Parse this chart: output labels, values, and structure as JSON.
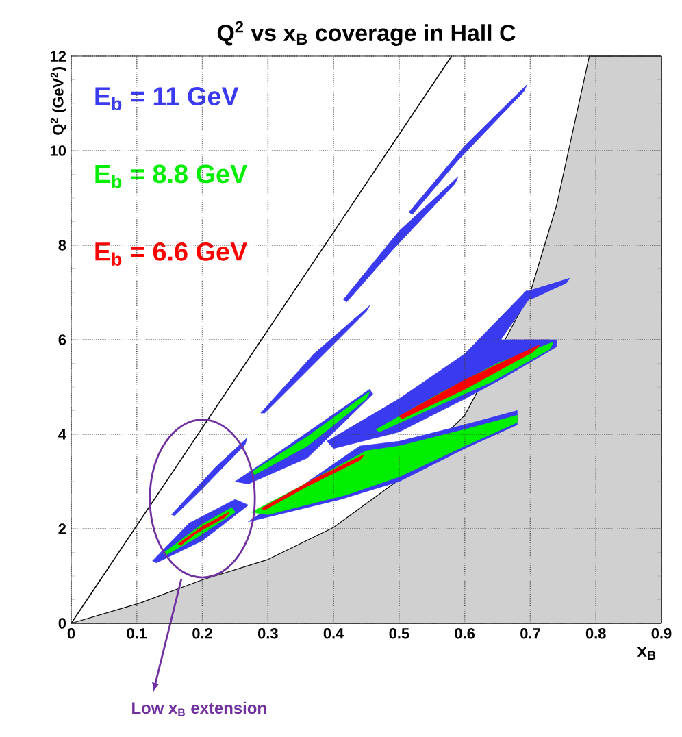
{
  "chart_data": {
    "type": "area",
    "title": "Q$^{2}$ vs x$_{B}$ coverage in Hall C",
    "xlabel": "x$_{B}$",
    "ylabel": "Q$^{2}$ (GeV$^{2}$)",
    "xlim": [
      0,
      0.9
    ],
    "ylim": [
      0,
      12
    ],
    "xticks": [
      0,
      0.1,
      0.2,
      0.3,
      0.4,
      0.5,
      0.6,
      0.7,
      0.8,
      0.9
    ],
    "yticks": [
      0,
      2,
      4,
      6,
      8,
      10,
      12
    ],
    "grid": true,
    "annotations": [
      "Low x$_{B}$ extension"
    ],
    "series": [
      {
        "name": "E$_{b}$ = 11 GeV",
        "color": "#3a3af0",
        "x": [
          0.124,
          0.18,
          0.25,
          0.27,
          0.2,
          0.13,
          null,
          0.153,
          0.22,
          0.268,
          0.265,
          0.2,
          0.158,
          null,
          0.27,
          0.33,
          0.44,
          0.5,
          0.6,
          0.68,
          0.68,
          0.6,
          0.5,
          0.41,
          0.3,
          null,
          0.25,
          0.33,
          0.455,
          0.46,
          0.36,
          0.27,
          null,
          0.39,
          0.5,
          0.6,
          0.695,
          0.7,
          0.655,
          0.74,
          0.74,
          0.66,
          0.6,
          0.5,
          0.4,
          null,
          0.69,
          0.76,
          0.755,
          0.7,
          null,
          0.289,
          0.37,
          0.455,
          0.45,
          0.36,
          0.295,
          null,
          0.415,
          0.5,
          0.59,
          0.585,
          0.49,
          0.42,
          null,
          0.515,
          0.6,
          0.695,
          0.69,
          0.59,
          0.52
        ],
        "values": [
          1.32,
          2.12,
          2.62,
          2.5,
          1.75,
          1.28,
          null,
          2.3,
          3.3,
          3.92,
          3.78,
          2.85,
          2.28,
          null,
          2.15,
          2.7,
          3.75,
          3.85,
          4.2,
          4.5,
          4.2,
          3.7,
          3.0,
          2.62,
          2.25,
          null,
          3.0,
          3.75,
          4.95,
          4.85,
          3.5,
          2.95,
          null,
          3.85,
          4.75,
          5.7,
          7.05,
          6.9,
          6.0,
          6.0,
          5.85,
          5.2,
          4.75,
          4.05,
          3.7,
          null,
          7.0,
          7.3,
          7.2,
          6.85,
          null,
          4.45,
          5.7,
          6.72,
          6.6,
          5.35,
          4.45,
          null,
          6.85,
          8.3,
          9.45,
          9.3,
          7.9,
          6.8,
          null,
          8.7,
          10.1,
          11.4,
          11.25,
          9.8,
          8.65
        ]
      },
      {
        "name": "E$_{b}$ = 8.8 GeV",
        "color": "#00ee00",
        "x": [
          0.14,
          0.2,
          0.245,
          0.25,
          0.19,
          0.145,
          null,
          0.275,
          0.35,
          0.45,
          0.5,
          0.6,
          0.68,
          0.68,
          0.6,
          0.5,
          0.42,
          0.3,
          null,
          0.275,
          0.36,
          0.455,
          0.45,
          0.36,
          0.28,
          null,
          0.465,
          0.56,
          0.65,
          0.735,
          0.73,
          0.64,
          0.55,
          0.47
        ],
        "values": [
          1.48,
          2.1,
          2.45,
          2.35,
          1.8,
          1.45,
          null,
          2.35,
          2.9,
          3.65,
          3.75,
          4.1,
          4.4,
          4.25,
          3.75,
          3.1,
          2.72,
          2.3,
          null,
          3.2,
          3.95,
          4.9,
          4.75,
          3.75,
          3.15,
          null,
          4.1,
          4.85,
          5.5,
          5.95,
          5.8,
          5.1,
          4.55,
          4.05
        ]
      },
      {
        "name": "E$_{b}$ = 6.6 GeV",
        "color": "#ff0000",
        "x": [
          0.163,
          0.2,
          0.242,
          0.235,
          0.19,
          0.167,
          null,
          0.29,
          0.37,
          0.447,
          0.44,
          0.36,
          0.295,
          null,
          0.5,
          0.6,
          0.715,
          0.705,
          0.6,
          0.505
        ],
        "values": [
          1.68,
          2.05,
          2.36,
          2.25,
          1.9,
          1.65,
          null,
          2.43,
          3.05,
          3.57,
          3.45,
          2.9,
          2.4,
          null,
          4.38,
          5.15,
          5.9,
          5.75,
          4.95,
          4.33
        ]
      },
      {
        "color": "#d0d0d0",
        "x": [
          0,
          0.105,
          0.2,
          0.3,
          0.4,
          0.5,
          0.6,
          0.7,
          0.74,
          0.79,
          0.9,
          0.9
        ],
        "values": [
          0,
          0.43,
          0.92,
          1.35,
          2.03,
          3.04,
          4.4,
          7.0,
          8.84,
          12,
          12,
          0
        ]
      },
      {
        "type": "line",
        "color": "#000000",
        "x": [
          0,
          0.58
        ],
        "values": [
          0,
          12
        ]
      }
    ]
  }
}
